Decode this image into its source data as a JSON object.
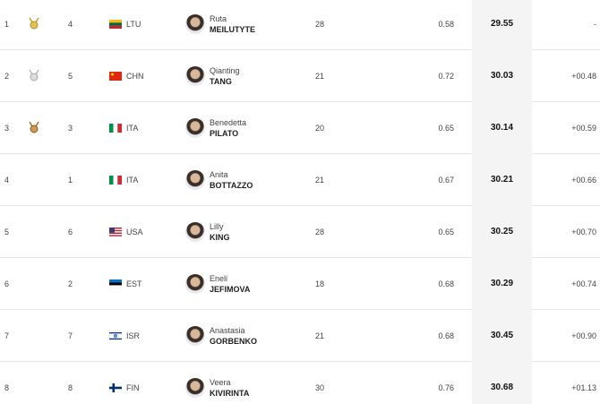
{
  "rows": [
    {
      "rank": "1",
      "lane": "4",
      "country": "LTU",
      "first_name": "Ruta",
      "last_name": "MEILUTYTE",
      "age": "28",
      "reaction": "0.58",
      "time": "29.55",
      "behind": "-"
    },
    {
      "rank": "2",
      "lane": "5",
      "country": "CHN",
      "first_name": "Qianting",
      "last_name": "TANG",
      "age": "21",
      "reaction": "0.72",
      "time": "30.03",
      "behind": "+00.48"
    },
    {
      "rank": "3",
      "lane": "3",
      "country": "ITA",
      "first_name": "Benedetta",
      "last_name": "PILATO",
      "age": "20",
      "reaction": "0.65",
      "time": "30.14",
      "behind": "+00.59"
    },
    {
      "rank": "4",
      "lane": "1",
      "country": "ITA",
      "first_name": "Anita",
      "last_name": "BOTTAZZO",
      "age": "21",
      "reaction": "0.67",
      "time": "30.21",
      "behind": "+00.66"
    },
    {
      "rank": "5",
      "lane": "6",
      "country": "USA",
      "first_name": "Lilly",
      "last_name": "KING",
      "age": "28",
      "reaction": "0.65",
      "time": "30.25",
      "behind": "+00.70"
    },
    {
      "rank": "6",
      "lane": "2",
      "country": "EST",
      "first_name": "Eneli",
      "last_name": "JEFIMOVA",
      "age": "18",
      "reaction": "0.68",
      "time": "30.29",
      "behind": "+00.74"
    },
    {
      "rank": "7",
      "lane": "7",
      "country": "ISR",
      "first_name": "Anastasia",
      "last_name": "GORBENKO",
      "age": "21",
      "reaction": "0.68",
      "time": "30.45",
      "behind": "+00.90"
    },
    {
      "rank": "8",
      "lane": "8",
      "country": "FIN",
      "first_name": "Veera",
      "last_name": "KIVIRINTA",
      "age": "30",
      "reaction": "0.76",
      "time": "30.68",
      "behind": "+01.13"
    }
  ]
}
